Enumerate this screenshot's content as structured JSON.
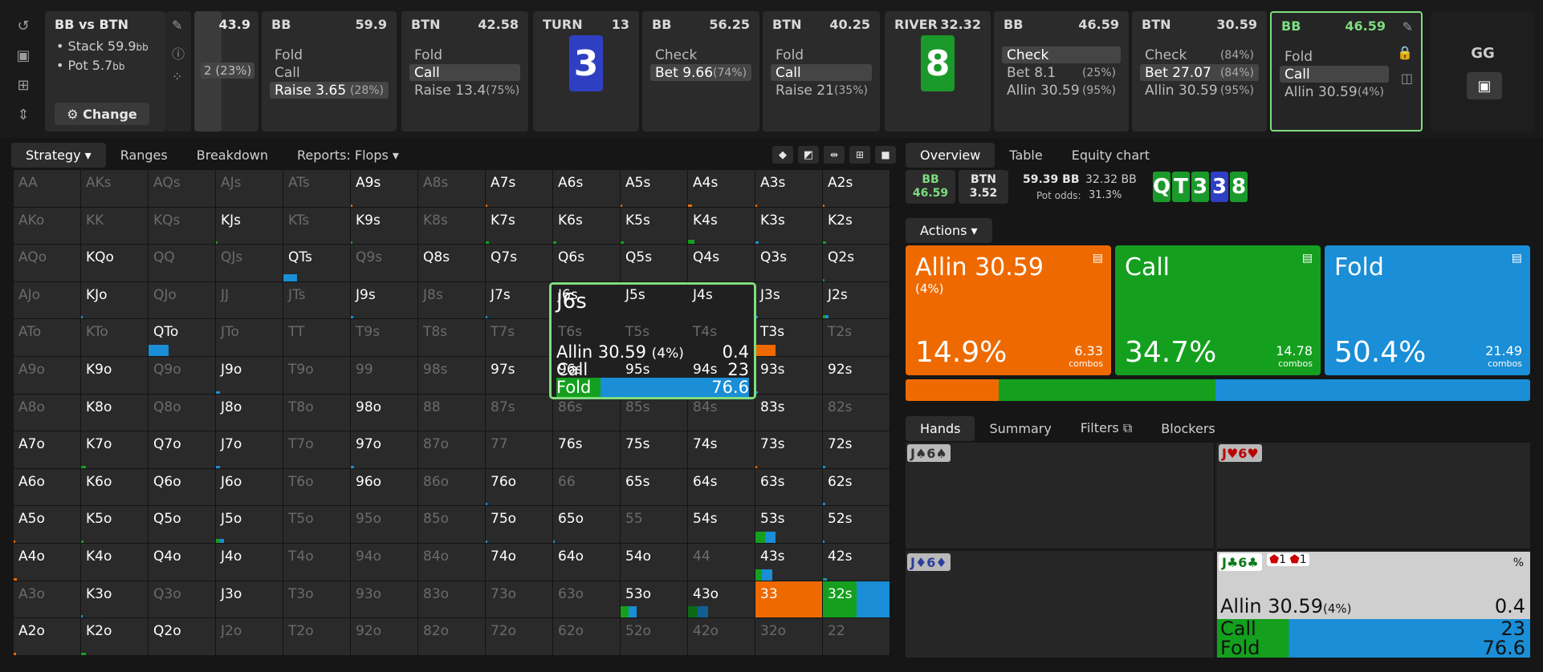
{
  "toolbar_left_icons": [
    "undo-icon",
    "save-icon",
    "gamepad-icon",
    "split-icon"
  ],
  "header": {
    "title": "BB vs BTN",
    "stack_label": "Stack 59.9",
    "stack_unit": "bb",
    "pot_label": "Pot 5.7",
    "pot_unit": "bb",
    "change_button": "Change"
  },
  "prev_node": {
    "value": "43.9",
    "pct": "2 (23%)"
  },
  "nodes": [
    {
      "pos": "BB",
      "val": "59.9",
      "actions": [
        {
          "l": "Fold",
          "p": ""
        },
        {
          "l": "Call",
          "p": ""
        },
        {
          "l": "Raise 3.65",
          "p": "(28%)",
          "sel": true
        }
      ]
    },
    {
      "pos": "BTN",
      "val": "42.58",
      "actions": [
        {
          "l": "Fold",
          "p": ""
        },
        {
          "l": "Call",
          "p": "",
          "sel": true
        },
        {
          "l": "Raise 13.4",
          "p": "(75%)"
        }
      ]
    },
    {
      "pos": "TURN",
      "val": "13",
      "card": "3",
      "cardColor": "#2f3fc4"
    },
    {
      "pos": "BB",
      "val": "56.25",
      "actions": [
        {
          "l": "Check",
          "p": ""
        },
        {
          "l": "Bet 9.66",
          "p": "(74%)",
          "sel": true
        }
      ]
    },
    {
      "pos": "BTN",
      "val": "40.25",
      "actions": [
        {
          "l": "Fold",
          "p": ""
        },
        {
          "l": "Call",
          "p": "",
          "sel": true
        },
        {
          "l": "Raise 21",
          "p": "(35%)"
        }
      ]
    },
    {
      "pos": "RIVER",
      "val": "32.32",
      "card": "8",
      "cardColor": "#1a9a2a"
    },
    {
      "pos": "BB",
      "val": "46.59",
      "actions": [
        {
          "l": "Check",
          "p": "",
          "sel": true
        },
        {
          "l": "Bet 8.1",
          "p": "(25%)"
        },
        {
          "l": "Allin 30.59",
          "p": "(95%)"
        }
      ]
    },
    {
      "pos": "BTN",
      "val": "30.59",
      "actions": [
        {
          "l": "Check",
          "p": "(84%)"
        },
        {
          "l": "Bet 27.07",
          "p": "(84%)",
          "sel": true
        },
        {
          "l": "Allin 30.59",
          "p": "(95%)"
        }
      ]
    },
    {
      "pos": "BB",
      "val": "46.59",
      "actions": [
        {
          "l": "Fold",
          "p": ""
        },
        {
          "l": "Call",
          "p": "",
          "sel": true
        },
        {
          "l": "Allin 30.59",
          "p": "(4%)"
        }
      ],
      "active": true
    }
  ],
  "gg_label": "GG",
  "left_tabs": {
    "strategy": "Strategy",
    "ranges": "Ranges",
    "breakdown": "Breakdown",
    "reports": "Reports: Flops"
  },
  "right_tabs": {
    "overview": "Overview",
    "table": "Table",
    "equity": "Equity chart"
  },
  "pot_info": {
    "bb_label": "BB",
    "bb_val": "46.59",
    "btn_label": "BTN",
    "btn_val": "3.52",
    "pot": "59.39 BB",
    "eff": "32.32 BB",
    "odds_label": "Pot odds:",
    "odds": "31.3%"
  },
  "board": [
    {
      "r": "Q",
      "c": "#1a9a2a"
    },
    {
      "r": "T",
      "c": "#1a9a2a"
    },
    {
      "r": "3",
      "c": "#1a9a2a"
    },
    {
      "r": "3",
      "c": "#2f3fc4"
    },
    {
      "r": "8",
      "c": "#1a9a2a"
    }
  ],
  "actions_label": "Actions",
  "big_actions": [
    {
      "name": "Allin 30.59",
      "sub": "(4%)",
      "pct": "14.9%",
      "combos": "6.33",
      "unit": "combos",
      "color": "#ee6a00"
    },
    {
      "name": "Call",
      "sub": "",
      "pct": "34.7%",
      "combos": "14.78",
      "unit": "combos",
      "color": "#14a01e"
    },
    {
      "name": "Fold",
      "sub": "",
      "pct": "50.4%",
      "combos": "21.49",
      "unit": "combos",
      "color": "#1a8ed6"
    }
  ],
  "freq": [
    {
      "c": "#ee6a00",
      "v": 14.9
    },
    {
      "c": "#14a01e",
      "v": 34.7
    },
    {
      "c": "#1a8ed6",
      "v": 50.4
    }
  ],
  "hands_tabs": {
    "hands": "Hands",
    "summary": "Summary",
    "filters": "Filters",
    "blockers": "Blockers"
  },
  "hands": [
    {
      "label": "J♠6♠",
      "color": "#333"
    },
    {
      "label": "J♥6♥",
      "color": "#b00"
    },
    {
      "label": "J♦6♦",
      "color": "#2a3f9c"
    },
    {
      "label": "J♣6♣",
      "color": "#0a7a1a",
      "b1": "1",
      "b2": "1",
      "pct_label": "%",
      "rows": [
        {
          "l": "Allin 30.59",
          "s": "(4%)",
          "v": "0.4"
        },
        {
          "l": "Call",
          "s": "",
          "v": "23"
        },
        {
          "l": "Fold",
          "s": "",
          "v": "76.6"
        }
      ]
    }
  ],
  "tooltip": {
    "hand": "J6s",
    "rows": [
      {
        "l": "Allin 30.59",
        "s": "(4%)",
        "v": "0.4"
      },
      {
        "l": "Call",
        "s": "",
        "v": "23"
      },
      {
        "l": "Fold",
        "s": "",
        "v": "76.6"
      }
    ]
  },
  "matrix": [
    [
      "AA|d",
      "AKs|d",
      "AQs|d",
      "AJs|d",
      "ATs|d",
      "A9s|h|o:.02",
      "A8s|d",
      "A7s|h|o:.02",
      "A6s|h",
      "A5s|h|o:.02",
      "A4s|h|o:.06",
      "A3s|h|o:.02",
      "A2s|h|o:.03"
    ],
    [
      "AKo|d",
      "KK|d",
      "KQs|d",
      "KJs|h|g:.03",
      "KTs|d",
      "K9s|h|g:.02",
      "K8s|d",
      "K7s|h|g:.05",
      "K6s|h|g:.05",
      "K5s|h|g:.05",
      "K4s|h|g:.1",
      "K3s|h|b:.05",
      "K2s|h|g:.05"
    ],
    [
      "AQo|d",
      "KQo|h",
      "QQ|d",
      "QJs|d",
      "QTs|h|b:.2",
      "Q9s|d",
      "Q8s|h",
      "Q7s|h",
      "Q6s|h",
      "Q5s|h",
      "Q4s|h",
      "Q3s|h",
      "Q2s|h|g:.02"
    ],
    [
      "AJo|d",
      "KJo|h|b:.03",
      "QJo|d",
      "JJ|d",
      "JTs|d",
      "J9s|h|b:.04",
      "J8s|d",
      "J7s|h|b:.03",
      "J6s|h",
      "J5s|h",
      "J4s|h",
      "J3s|h|b:.04",
      "J2s|h|g:.04,b:.04"
    ],
    [
      "ATo|d",
      "KTo|d",
      "QTo|h|b:.3",
      "JTo|d",
      "TT|d",
      "T9s|d",
      "T8s|d",
      "T7s|d",
      "T6s|d",
      "T5s|d",
      "T4s|d",
      "T3s|h|o:.3",
      "T2s|d"
    ],
    [
      "A9o|d",
      "K9o|h",
      "Q9o|d",
      "J9o|h|b:.06",
      "T9o|d",
      "99|d",
      "98s|d",
      "97s|h",
      "96s|h",
      "95s|h",
      "94s|h",
      "93s|h|b:.04",
      "92s|h"
    ],
    [
      "A8o|d",
      "K8o|h",
      "Q8o|d",
      "J8o|h",
      "T8o|d",
      "98o|h",
      "88|d",
      "87s|d",
      "86s|d",
      "85s|d",
      "84s|d",
      "83s|h",
      "82s|d"
    ],
    [
      "A7o|h",
      "K7o|h|g:.07",
      "Q7o|h",
      "J7o|h|b:.06",
      "T7o|d",
      "97o|h|b:.05",
      "87o|d",
      "77|d",
      "76s|h",
      "75s|h",
      "74s|h",
      "73s|h|o:.02",
      "72s|h|b:.04"
    ],
    [
      "A6o|h",
      "K6o|h",
      "Q6o|h",
      "J6o|h",
      "T6o|d",
      "96o|h",
      "86o|d",
      "76o|h|b:.03",
      "66|d",
      "65s|h",
      "64s|h",
      "63s|h",
      "62s|h|b:.04"
    ],
    [
      "A5o|h|o:.02",
      "K5o|h|g:.04",
      "Q5o|h",
      "J5o|h|g:.06,b:.06",
      "T5o|d",
      "95o|d",
      "85o|d",
      "75o|h|b:.03",
      "65o|h|b:.03",
      "55|d",
      "54s|h",
      "53s|h|g:.15,b:.15",
      "52s|h|b:.03"
    ],
    [
      "A4o|h|o:.05",
      "K4o|h",
      "Q4o|h",
      "J4o|h",
      "T4o|d",
      "94o|d",
      "84o|d",
      "74o|h",
      "64o|h",
      "54o|h",
      "44|d",
      "43s|h|g:.1,b:.15",
      "42s|h|g:.03,b:.03"
    ],
    [
      "A3o|d",
      "K3o|h|b:.03",
      "Q3o|d",
      "J3o|h",
      "T3o|d",
      "93o|d",
      "83o|d",
      "73o|d",
      "63o|d",
      "53o|h|g:.12,b:.12",
      "43o|h|gd:.15,bd:.15",
      "33|h|o:1",
      "32s|h|g:.5,b:.5"
    ],
    [
      "A2o|h|o:.04",
      "K2o|h|g:.07",
      "Q2o|h",
      "J2o|d",
      "T2o|d",
      "92o|d",
      "82o|d",
      "72o|d",
      "62o|d",
      "52o|d",
      "42o|d",
      "32o|d",
      "22|d"
    ]
  ]
}
